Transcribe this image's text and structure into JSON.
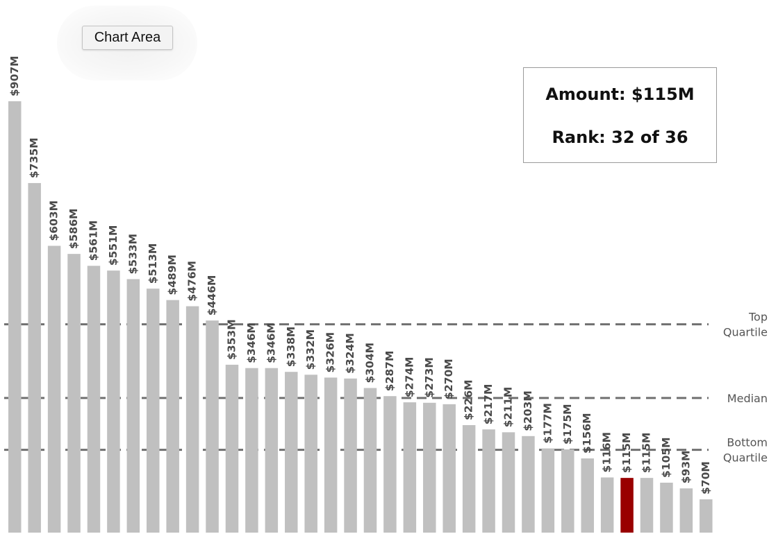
{
  "chart_area_button": {
    "label": "Chart Area"
  },
  "info_box": {
    "amount_text": "Amount: $115M",
    "rank_text": "Rank: 32 of 36"
  },
  "reference_lines": [
    {
      "name": "top-quartile",
      "label_lines": [
        "Top",
        "Quartile"
      ],
      "value": 438
    },
    {
      "name": "median",
      "label_lines": [
        "Median"
      ],
      "value": 283
    },
    {
      "name": "bottom-quartile",
      "label_lines": [
        "Bottom",
        "Quartile"
      ],
      "value": 174
    }
  ],
  "colors": {
    "bar": "#c0c0c0",
    "highlight": "#990000",
    "reference_line": "#707070"
  },
  "chart_data": {
    "type": "bar",
    "categories": [],
    "values": [
      907,
      735,
      603,
      586,
      561,
      551,
      533,
      513,
      489,
      476,
      446,
      353,
      346,
      346,
      338,
      332,
      326,
      324,
      304,
      287,
      274,
      273,
      270,
      226,
      217,
      211,
      203,
      177,
      175,
      156,
      116,
      115,
      115,
      105,
      93,
      70
    ],
    "labels": [
      "$907M",
      "$735M",
      "$603M",
      "$586M",
      "$561M",
      "$551M",
      "$533M",
      "$513M",
      "$489M",
      "$476M",
      "$446M",
      "$353M",
      "$346M",
      "$346M",
      "$338M",
      "$332M",
      "$326M",
      "$324M",
      "$304M",
      "$287M",
      "$274M",
      "$273M",
      "$270M",
      "$226M",
      "$217M",
      "$211M",
      "$203M",
      "$177M",
      "$175M",
      "$156M",
      "$116M",
      "$115M",
      "$115M",
      "$105M",
      "$93M",
      "$70M"
    ],
    "highlight_index": 31,
    "title": "",
    "xlabel": "",
    "ylabel": "",
    "ylim": [
      0,
      907
    ],
    "grid": false,
    "legend": "none"
  }
}
